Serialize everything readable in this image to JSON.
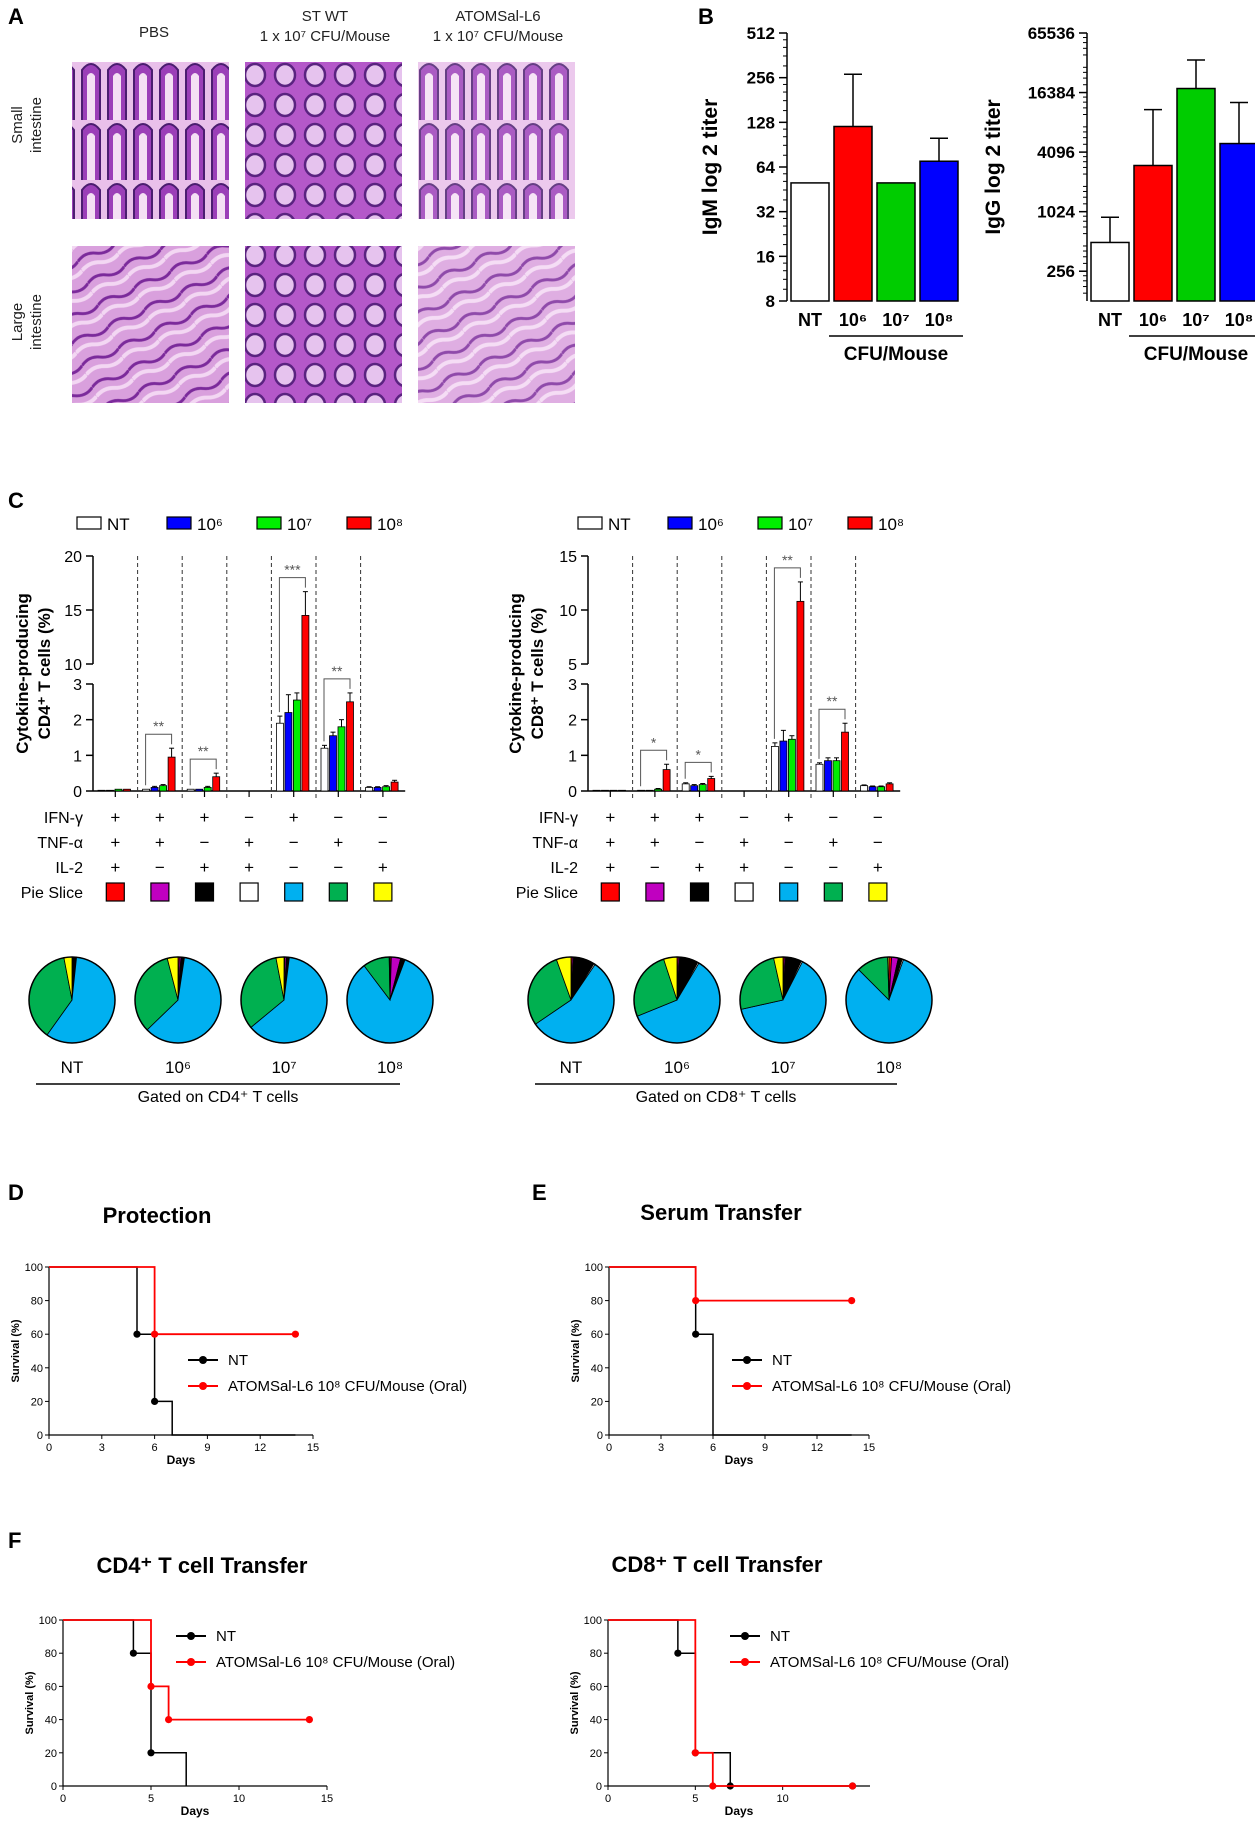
{
  "panels": {
    "A": {
      "letter": "A",
      "col_headers": [
        {
          "line1": "PBS",
          "line2": ""
        },
        {
          "line1": "ST WT",
          "line2": "1 x 10⁷ CFU/Mouse"
        },
        {
          "line1": "ATOMSal-L6",
          "line2": "1 x 10⁷ CFU/Mouse"
        }
      ],
      "row_labels": [
        {
          "line1": "Small",
          "line2": "intestine"
        },
        {
          "line1": "Large",
          "line2": "intestine"
        }
      ]
    },
    "B": {
      "letter": "B"
    },
    "C": {
      "letter": "C"
    },
    "D": {
      "letter": "D"
    },
    "E": {
      "letter": "E"
    },
    "F": {
      "letter": "F"
    }
  },
  "chart_data": [
    {
      "id": "B1",
      "type": "bar",
      "ylabel": "IgM log 2 titer",
      "yscale": "log2",
      "ylim": [
        8,
        512
      ],
      "yticks": [
        "512",
        "256",
        "128",
        "64",
        "32",
        "16",
        "8"
      ],
      "ytick_values": [
        512,
        256,
        128,
        64,
        32,
        16,
        8
      ],
      "categories": [
        "NT",
        "10⁶",
        "10⁷",
        "10⁸"
      ],
      "values": [
        50,
        120,
        50,
        70
      ],
      "errors": [
        0,
        270,
        0,
        100
      ],
      "colors": [
        "#ffffff",
        "#ff0000",
        "#00cc00",
        "#0000ff"
      ],
      "group_label": "CFU/Mouse"
    },
    {
      "id": "B2",
      "type": "bar",
      "ylabel": "IgG log 2 titer",
      "yscale": "log2",
      "ylim": [
        128,
        65536
      ],
      "yticks": [
        "65536",
        "16384",
        "4096",
        "1024",
        "256"
      ],
      "ytick_values": [
        65536,
        16384,
        4096,
        1024,
        256
      ],
      "categories": [
        "NT",
        "10⁶",
        "10⁷",
        "10⁸"
      ],
      "values": [
        500,
        3000,
        18000,
        5000
      ],
      "errors": [
        900,
        11000,
        35000,
        13000
      ],
      "colors": [
        "#ffffff",
        "#ff0000",
        "#00cc00",
        "#0000ff"
      ],
      "group_label": "CFU/Mouse"
    },
    {
      "id": "C1",
      "type": "bar",
      "ylabel_line1": "Cytokine-producing",
      "ylabel_line2": "CD4⁺ T cells (%)",
      "legend": [
        "NT",
        "10⁶",
        "10⁷",
        "10⁸"
      ],
      "colors": [
        "#ffffff",
        "#0000ff",
        "#00ee00",
        "#ff0000"
      ],
      "yticks_low": [
        "0",
        "1",
        "2",
        "3"
      ],
      "yticks_high": [
        "10",
        "15",
        "20"
      ],
      "ytick_low_values": [
        0,
        1,
        2,
        3
      ],
      "ytick_high_values": [
        10,
        15,
        20
      ],
      "values": [
        [
          0.02,
          0.02,
          0.05,
          0.05
        ],
        [
          0.05,
          0.1,
          0.15,
          0.95
        ],
        [
          0.05,
          0.05,
          0.1,
          0.4
        ],
        [
          0,
          0,
          0,
          0
        ],
        [
          1.9,
          2.2,
          2.55,
          14.5
        ],
        [
          1.2,
          1.55,
          1.8,
          2.5
        ],
        [
          0.1,
          0.1,
          0.12,
          0.25
        ]
      ],
      "errors": [
        [
          0,
          0,
          0,
          0
        ],
        [
          0,
          0.03,
          0.03,
          0.25
        ],
        [
          0,
          0,
          0.03,
          0.1
        ],
        [
          0,
          0,
          0,
          0
        ],
        [
          0.2,
          0.5,
          0.2,
          2.2
        ],
        [
          0.08,
          0.1,
          0.2,
          0.25
        ],
        [
          0.02,
          0.02,
          0.03,
          0.05
        ]
      ],
      "significance": [
        {
          "group": 1,
          "text": "**"
        },
        {
          "group": 2,
          "text": "**"
        },
        {
          "group": 4,
          "text": "***"
        },
        {
          "group": 5,
          "text": "**"
        }
      ]
    },
    {
      "id": "C2",
      "type": "bar",
      "ylabel_line1": "Cytokine-producing",
      "ylabel_line2": "CD8⁺ T cells (%)",
      "legend": [
        "NT",
        "10⁶",
        "10⁷",
        "10⁸"
      ],
      "colors": [
        "#ffffff",
        "#0000ff",
        "#00ee00",
        "#ff0000"
      ],
      "yticks_low": [
        "0",
        "1",
        "2",
        "3"
      ],
      "yticks_high": [
        "5",
        "10",
        "15"
      ],
      "ytick_low_values": [
        0,
        1,
        2,
        3
      ],
      "ytick_high_values": [
        5,
        10,
        15
      ],
      "values": [
        [
          0.02,
          0.02,
          0.02,
          0.02
        ],
        [
          0.02,
          0.02,
          0.05,
          0.6
        ],
        [
          0.2,
          0.15,
          0.18,
          0.35
        ],
        [
          0,
          0,
          0,
          0
        ],
        [
          1.25,
          1.4,
          1.45,
          10.8
        ],
        [
          0.75,
          0.85,
          0.85,
          1.65
        ],
        [
          0.15,
          0.12,
          0.12,
          0.2
        ]
      ],
      "errors": [
        [
          0,
          0,
          0,
          0
        ],
        [
          0,
          0,
          0.02,
          0.15
        ],
        [
          0.03,
          0.03,
          0.03,
          0.06
        ],
        [
          0,
          0,
          0,
          0
        ],
        [
          0.1,
          0.3,
          0.1,
          1.8
        ],
        [
          0.04,
          0.08,
          0.08,
          0.25
        ],
        [
          0.02,
          0.02,
          0.02,
          0.03
        ]
      ],
      "significance": [
        {
          "group": 1,
          "text": "*"
        },
        {
          "group": 2,
          "text": "*"
        },
        {
          "group": 4,
          "text": "**"
        },
        {
          "group": 5,
          "text": "**"
        }
      ]
    },
    {
      "id": "C-pies",
      "type": "pie",
      "slice_colors": [
        "#ff0000",
        "#c000c0",
        "#000000",
        "#ffffff",
        "#00b0f0",
        "#00b050",
        "#ffff00"
      ],
      "cd4": {
        "labels": [
          "NT",
          "10⁶",
          "10⁷",
          "10⁸"
        ],
        "footer": "Gated on CD4⁺ T cells",
        "slices": [
          [
            0.3,
            0.3,
            0.8,
            0.3,
            58,
            37,
            3
          ],
          [
            0.5,
            0.6,
            1.0,
            0.3,
            60,
            33,
            4
          ],
          [
            0.3,
            0.6,
            0.8,
            0.3,
            62,
            33,
            3
          ],
          [
            0.5,
            3.5,
            1.5,
            0.2,
            84,
            10,
            0.3
          ]
        ]
      },
      "cd8": {
        "labels": [
          "NT",
          "10⁶",
          "10⁷",
          "10⁸"
        ],
        "footer": "Gated on CD8⁺ T cells",
        "slices": [
          [
            0.5,
            0.5,
            8,
            0.5,
            56,
            29,
            5.5
          ],
          [
            0.5,
            0.5,
            7,
            0.5,
            60,
            26,
            5
          ],
          [
            0.5,
            0.5,
            6,
            0.5,
            64,
            25,
            3.5
          ],
          [
            1,
            2.5,
            1.5,
            0.5,
            82,
            12,
            0.5
          ]
        ]
      },
      "cytokine_table": {
        "row_labels": [
          "IFN-γ",
          "TNF-α",
          "IL-2",
          "Pie Slice"
        ],
        "rows": [
          [
            "+",
            "+",
            "+",
            "−",
            "+",
            "−",
            "−"
          ],
          [
            "+",
            "+",
            "−",
            "+",
            "−",
            "+",
            "−"
          ],
          [
            "+",
            "−",
            "+",
            "+",
            "−",
            "−",
            "+"
          ]
        ]
      }
    },
    {
      "id": "D",
      "type": "line",
      "title": "Protection",
      "xlabel": "Days",
      "ylabel": "Survival (%)",
      "xlim": [
        0,
        15
      ],
      "ylim": [
        0,
        100
      ],
      "xticks": [
        "0",
        "3",
        "6",
        "9",
        "12",
        "15"
      ],
      "yticks": [
        "0",
        "20",
        "40",
        "60",
        "80",
        "100"
      ],
      "series": [
        {
          "name": "NT",
          "color": "#000000",
          "steps": [
            [
              0,
              100
            ],
            [
              5,
              60
            ],
            [
              6,
              20
            ],
            [
              7,
              0
            ],
            [
              14,
              0
            ]
          ],
          "markers": [
            [
              5,
              60
            ],
            [
              6,
              20
            ]
          ]
        },
        {
          "name": "ATOMSal-L6 10⁸ CFU/Mouse (Oral)",
          "color": "#ff0000",
          "steps": [
            [
              0,
              100
            ],
            [
              6,
              60
            ],
            [
              14,
              60
            ]
          ],
          "markers": [
            [
              6,
              60
            ],
            [
              14,
              60
            ]
          ]
        }
      ]
    },
    {
      "id": "E",
      "type": "line",
      "title": "Serum Transfer",
      "xlabel": "Days",
      "ylabel": "Survival (%)",
      "xlim": [
        0,
        15
      ],
      "ylim": [
        0,
        100
      ],
      "xticks": [
        "0",
        "3",
        "6",
        "9",
        "12",
        "15"
      ],
      "yticks": [
        "0",
        "20",
        "40",
        "60",
        "80",
        "100"
      ],
      "series": [
        {
          "name": "NT",
          "color": "#000000",
          "steps": [
            [
              0,
              100
            ],
            [
              5,
              60
            ],
            [
              6,
              0
            ],
            [
              14,
              0
            ]
          ],
          "markers": [
            [
              5,
              60
            ]
          ]
        },
        {
          "name": "ATOMSal-L6 10⁸ CFU/Mouse (Oral)",
          "color": "#ff0000",
          "steps": [
            [
              0,
              100
            ],
            [
              5,
              80
            ],
            [
              14,
              80
            ]
          ],
          "markers": [
            [
              5,
              80
            ],
            [
              14,
              80
            ]
          ]
        }
      ]
    },
    {
      "id": "F1",
      "type": "line",
      "title": "CD4⁺ T cell Transfer",
      "xlabel": "Days",
      "ylabel": "Survival (%)",
      "xlim": [
        0,
        15
      ],
      "ylim": [
        0,
        100
      ],
      "xticks": [
        "0",
        "5",
        "10",
        "15"
      ],
      "yticks": [
        "0",
        "20",
        "40",
        "60",
        "80",
        "100"
      ],
      "series": [
        {
          "name": "NT",
          "color": "#000000",
          "steps": [
            [
              0,
              100
            ],
            [
              4,
              80
            ],
            [
              5,
              20
            ],
            [
              7,
              0
            ]
          ],
          "markers": [
            [
              4,
              80
            ],
            [
              5,
              20
            ]
          ]
        },
        {
          "name": "ATOMSal-L6 10⁸ CFU/Mouse (Oral)",
          "color": "#ff0000",
          "steps": [
            [
              0,
              100
            ],
            [
              5,
              60
            ],
            [
              6,
              40
            ],
            [
              14,
              40
            ]
          ],
          "markers": [
            [
              5,
              60
            ],
            [
              6,
              40
            ],
            [
              14,
              40
            ]
          ]
        }
      ]
    },
    {
      "id": "F2",
      "type": "line",
      "title": "CD8⁺ T cell Transfer",
      "xlabel": "Days",
      "ylabel": "Survival (%)",
      "xlim": [
        0,
        15
      ],
      "ylim": [
        0,
        100
      ],
      "xticks": [
        "0",
        "5",
        "10"
      ],
      "yticks": [
        "0",
        "20",
        "40",
        "60",
        "80",
        "100"
      ],
      "series": [
        {
          "name": "NT",
          "color": "#000000",
          "steps": [
            [
              0,
              100
            ],
            [
              4,
              80
            ],
            [
              5,
              20
            ],
            [
              7,
              0
            ],
            [
              14,
              0
            ]
          ],
          "markers": [
            [
              4,
              80
            ],
            [
              5,
              20
            ],
            [
              7,
              0
            ],
            [
              14,
              0
            ]
          ]
        },
        {
          "name": "ATOMSal-L6 10⁸ CFU/Mouse (Oral)",
          "color": "#ff0000",
          "steps": [
            [
              0,
              100
            ],
            [
              5,
              20
            ],
            [
              6,
              0
            ],
            [
              14,
              0
            ]
          ],
          "markers": [
            [
              5,
              20
            ],
            [
              6,
              0
            ],
            [
              14,
              0
            ]
          ]
        }
      ]
    }
  ]
}
